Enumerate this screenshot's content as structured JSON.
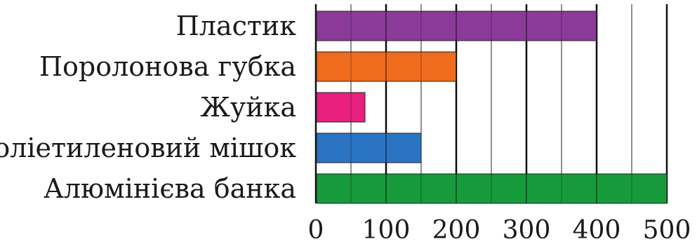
{
  "chart_data": {
    "type": "bar",
    "orientation": "horizontal",
    "categories": [
      "Пластик",
      "Поролонова губка",
      "Жуйка",
      "Поліетиленовий мішок",
      "Алюмінієва банка"
    ],
    "values": [
      400,
      200,
      70,
      150,
      500
    ],
    "colors": [
      "#8b3a9a",
      "#ef6b1e",
      "#e8207e",
      "#2b74c4",
      "#179a3c"
    ],
    "xlim": [
      0,
      500
    ],
    "xticks": [
      "0",
      "100",
      "200",
      "300",
      "400",
      "500"
    ],
    "major_step": 100,
    "minor_step": 50,
    "grid": true,
    "title": "",
    "xlabel": "",
    "ylabel": ""
  }
}
